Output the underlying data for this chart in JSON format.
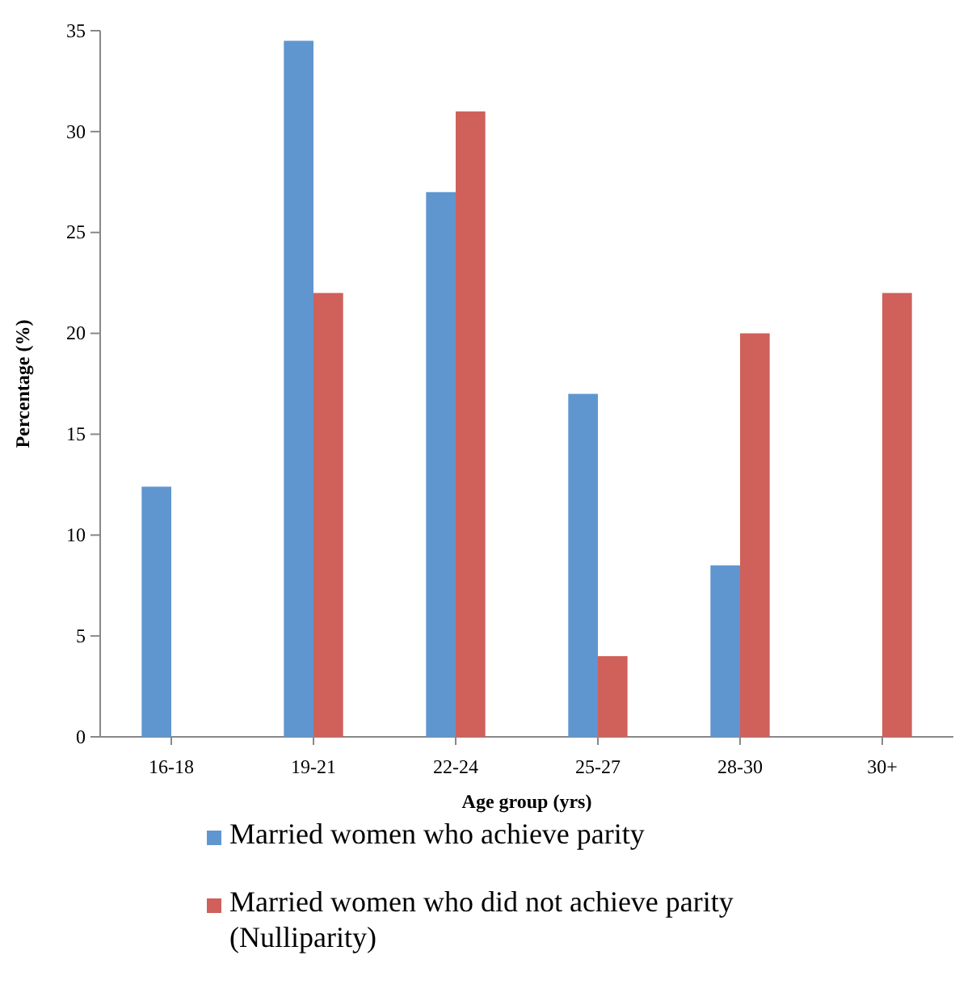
{
  "chart_data": {
    "type": "bar",
    "xlabel": "Age group (yrs)",
    "ylabel": "Percentage (%)",
    "categories": [
      "16-18",
      "19-21",
      "22-24",
      "25-27",
      "28-30",
      "30+"
    ],
    "series": [
      {
        "name": "Married women who achieve parity",
        "color": "#5f96d0",
        "values": [
          12.4,
          34.5,
          27,
          17,
          8.5,
          0
        ]
      },
      {
        "name": "Married women who did not achieve parity (Nulliparity)",
        "color": "#d0605a",
        "values": [
          0,
          22,
          31,
          4,
          20,
          22
        ]
      }
    ],
    "ylim": [
      0,
      35
    ],
    "yticks": [
      0,
      5,
      10,
      15,
      20,
      25,
      30,
      35
    ],
    "grid": false,
    "legend": "bottom"
  }
}
